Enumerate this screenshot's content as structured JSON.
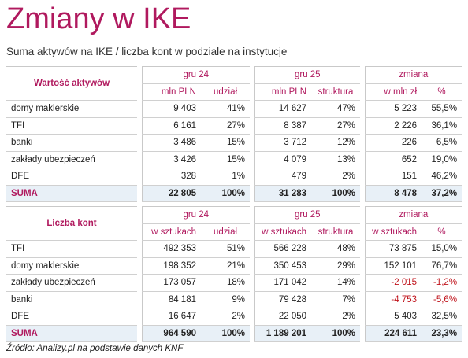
{
  "title": "Zmiany w IKE",
  "subtitle": "Suma aktywów na IKE / liczba kont w podziale na instytucje",
  "assets_table": {
    "row_header": "Wartość aktywów",
    "group1": "gru 24",
    "group2": "gru 25",
    "group3": "zmiana",
    "sub": [
      "mln PLN",
      "udział",
      "mln PLN",
      "struktura",
      "w mln zł",
      "%"
    ],
    "rows": [
      {
        "name": "domy maklerskie",
        "c": [
          "9 403",
          "41%",
          "14 627",
          "47%",
          "5 223",
          "55,5%"
        ]
      },
      {
        "name": "TFI",
        "c": [
          "6 161",
          "27%",
          "8 387",
          "27%",
          "2 226",
          "36,1%"
        ]
      },
      {
        "name": "banki",
        "c": [
          "3 486",
          "15%",
          "3 712",
          "12%",
          "226",
          "6,5%"
        ]
      },
      {
        "name": "zakłady ubezpieczeń",
        "c": [
          "3 426",
          "15%",
          "4 079",
          "13%",
          "652",
          "19,0%"
        ]
      },
      {
        "name": "DFE",
        "c": [
          "328",
          "1%",
          "479",
          "2%",
          "151",
          "46,2%"
        ]
      }
    ],
    "total": {
      "name": "SUMA",
      "c": [
        "22 805",
        "100%",
        "31 283",
        "100%",
        "8 478",
        "37,2%"
      ]
    }
  },
  "accounts_table": {
    "row_header": "Liczba kont",
    "group1": "gru 24",
    "group2": "gru 25",
    "group3": "zmiana",
    "sub": [
      "w sztukach",
      "udział",
      "w sztukach",
      "struktura",
      "w sztukach",
      "%"
    ],
    "rows": [
      {
        "name": "TFI",
        "c": [
          "492 353",
          "51%",
          "566 228",
          "48%",
          "73 875",
          "15,0%"
        ]
      },
      {
        "name": "domy maklerskie",
        "c": [
          "198 352",
          "21%",
          "350 453",
          "29%",
          "152 101",
          "76,7%"
        ]
      },
      {
        "name": "zakłady ubezpieczeń",
        "c": [
          "173 057",
          "18%",
          "171 042",
          "14%",
          "-2 015",
          "-1,2%"
        ]
      },
      {
        "name": "banki",
        "c": [
          "84 181",
          "9%",
          "79 428",
          "7%",
          "-4 753",
          "-5,6%"
        ]
      },
      {
        "name": "DFE",
        "c": [
          "16 647",
          "2%",
          "22 050",
          "2%",
          "5 403",
          "32,5%"
        ]
      }
    ],
    "total": {
      "name": "SUMA",
      "c": [
        "964 590",
        "100%",
        "1 189 201",
        "100%",
        "224 611",
        "23,3%"
      ]
    }
  },
  "colors": {
    "accent": "#b0195e",
    "negative": "#c0141c",
    "sum_row_bg": "#e8f0f7"
  },
  "source": "Źródło: Analizy.pl na podstawie danych KNF"
}
